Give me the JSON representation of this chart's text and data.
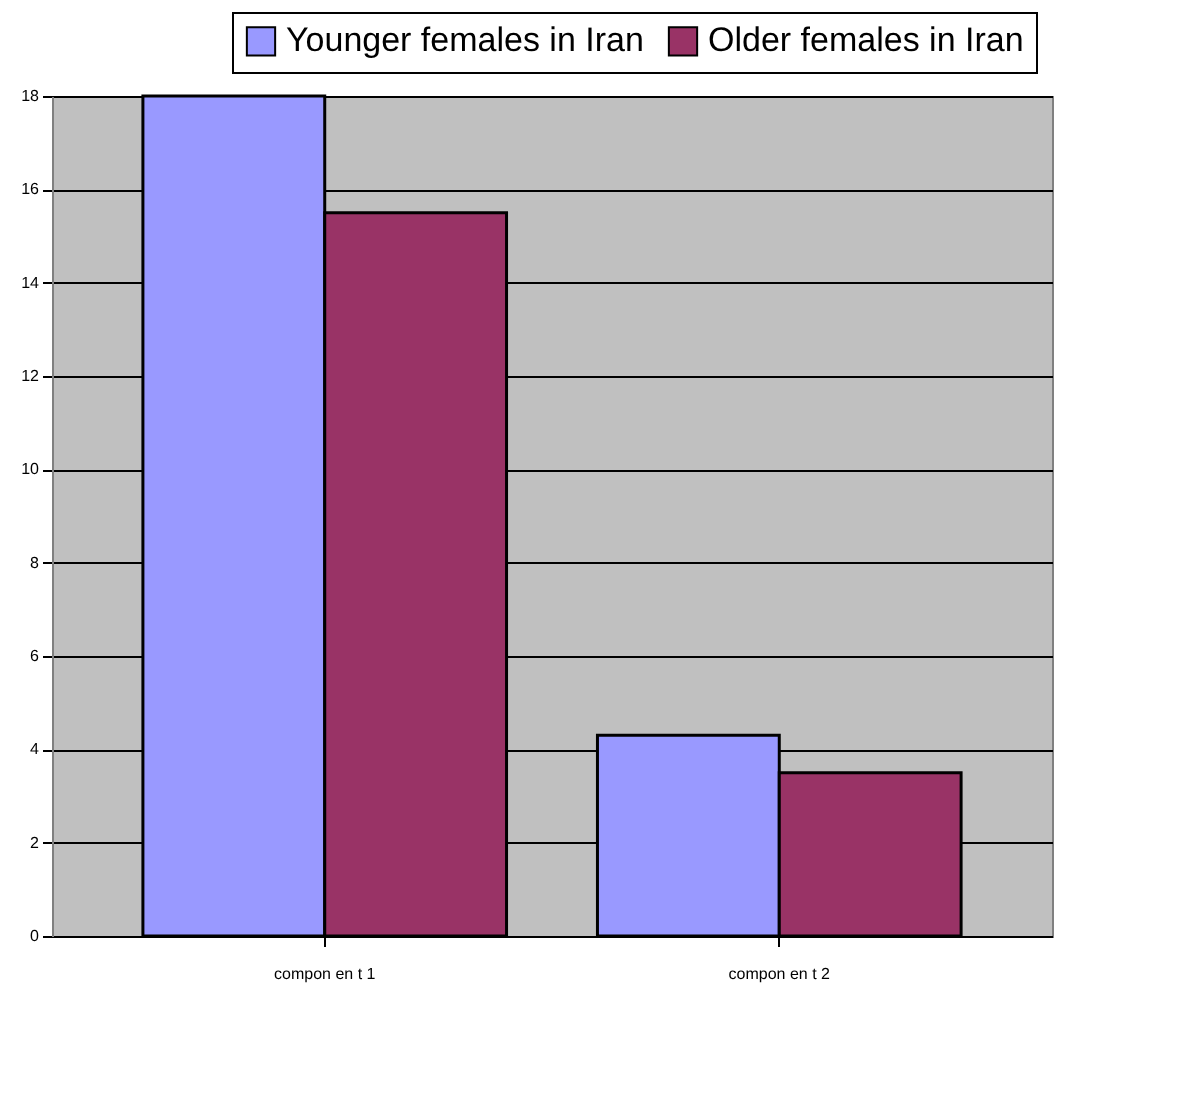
{
  "chart_data": {
    "type": "bar",
    "categories": [
      "compon en t 1",
      "compon en t 2"
    ],
    "series": [
      {
        "name": "Younger females in Iran",
        "color": "#9999ff",
        "values": [
          18,
          4.3
        ]
      },
      {
        "name": "Older females in Iran",
        "color": "#993366",
        "values": [
          15.5,
          3.5
        ]
      }
    ],
    "ylim": [
      0,
      18
    ],
    "yticks": [
      0,
      2,
      4,
      6,
      8,
      10,
      12,
      14,
      16,
      18
    ],
    "grid": "y",
    "legend": "top right"
  }
}
